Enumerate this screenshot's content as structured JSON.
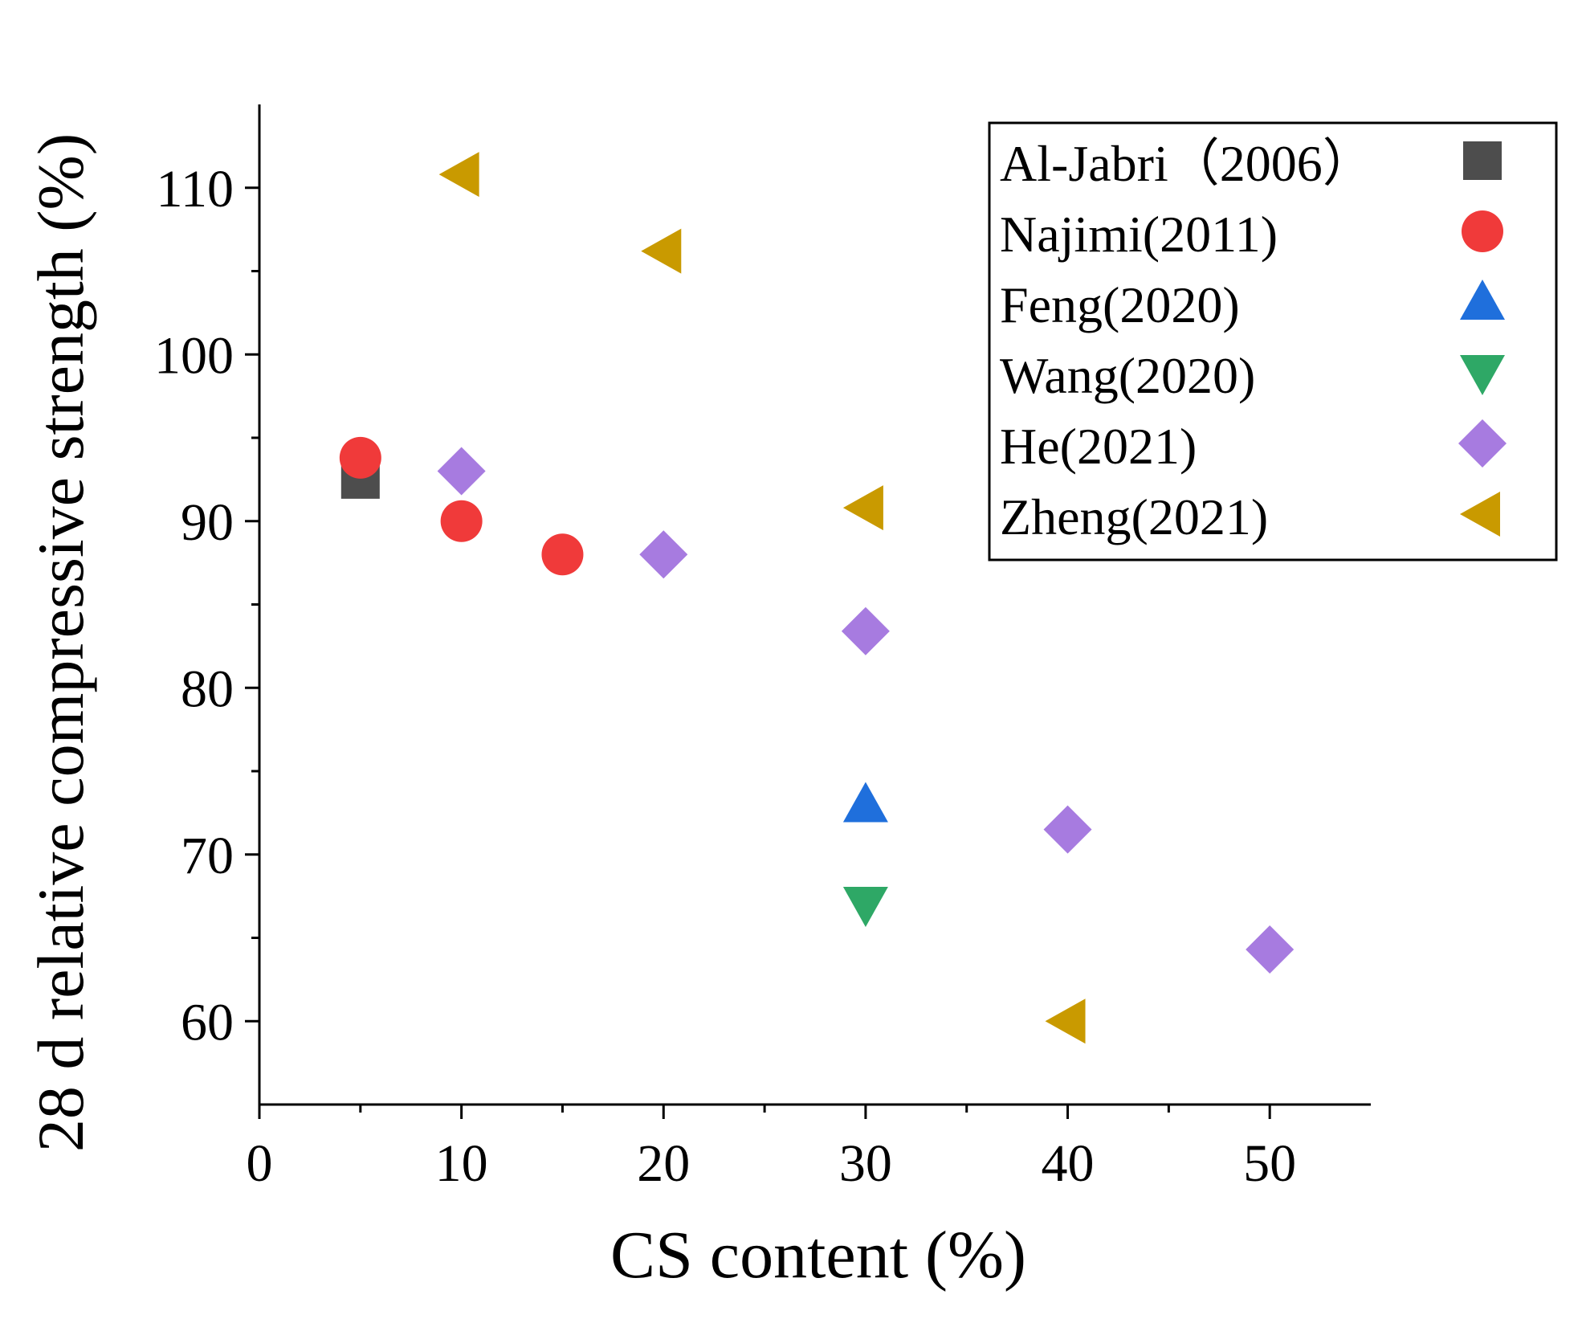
{
  "chart_data": {
    "type": "scatter",
    "title": "",
    "xlabel": "CS content (%)",
    "ylabel": "28 d relative compressive strength (%)",
    "xlim": [
      0,
      55
    ],
    "ylim": [
      55,
      115
    ],
    "xticks": [
      0,
      10,
      20,
      30,
      40,
      50
    ],
    "yticks": [
      60,
      70,
      80,
      90,
      100,
      110
    ],
    "x_minor_ticks": [
      5,
      15,
      25,
      35,
      45
    ],
    "y_minor_ticks": [
      65,
      75,
      85,
      95,
      105
    ],
    "grid": false,
    "legend_position": "top-right",
    "series": [
      {
        "name": "Al-Jabri（2006）",
        "marker": "square",
        "color": "#4d4d4d",
        "points": [
          [
            5,
            92.5
          ]
        ]
      },
      {
        "name": "Najimi(2011)",
        "marker": "circle",
        "color": "#f03a3a",
        "points": [
          [
            5,
            93.8
          ],
          [
            10,
            90.0
          ],
          [
            15,
            88.0
          ]
        ]
      },
      {
        "name": "Feng(2020)",
        "marker": "triangle-up",
        "color": "#1f6fdc",
        "points": [
          [
            30,
            73.0
          ]
        ]
      },
      {
        "name": "Wang(2020)",
        "marker": "triangle-down",
        "color": "#2ea866",
        "points": [
          [
            30,
            67.0
          ]
        ]
      },
      {
        "name": "He(2021)",
        "marker": "diamond",
        "color": "#a77be0",
        "points": [
          [
            10,
            93.0
          ],
          [
            20,
            88.0
          ],
          [
            30,
            83.4
          ],
          [
            40,
            71.5
          ],
          [
            50,
            64.3
          ]
        ]
      },
      {
        "name": "Zheng(2021)",
        "marker": "triangle-left",
        "color": "#c99a00",
        "points": [
          [
            10,
            110.8
          ],
          [
            20,
            106.2
          ],
          [
            30,
            90.8
          ],
          [
            40,
            60.0
          ]
        ]
      }
    ]
  }
}
